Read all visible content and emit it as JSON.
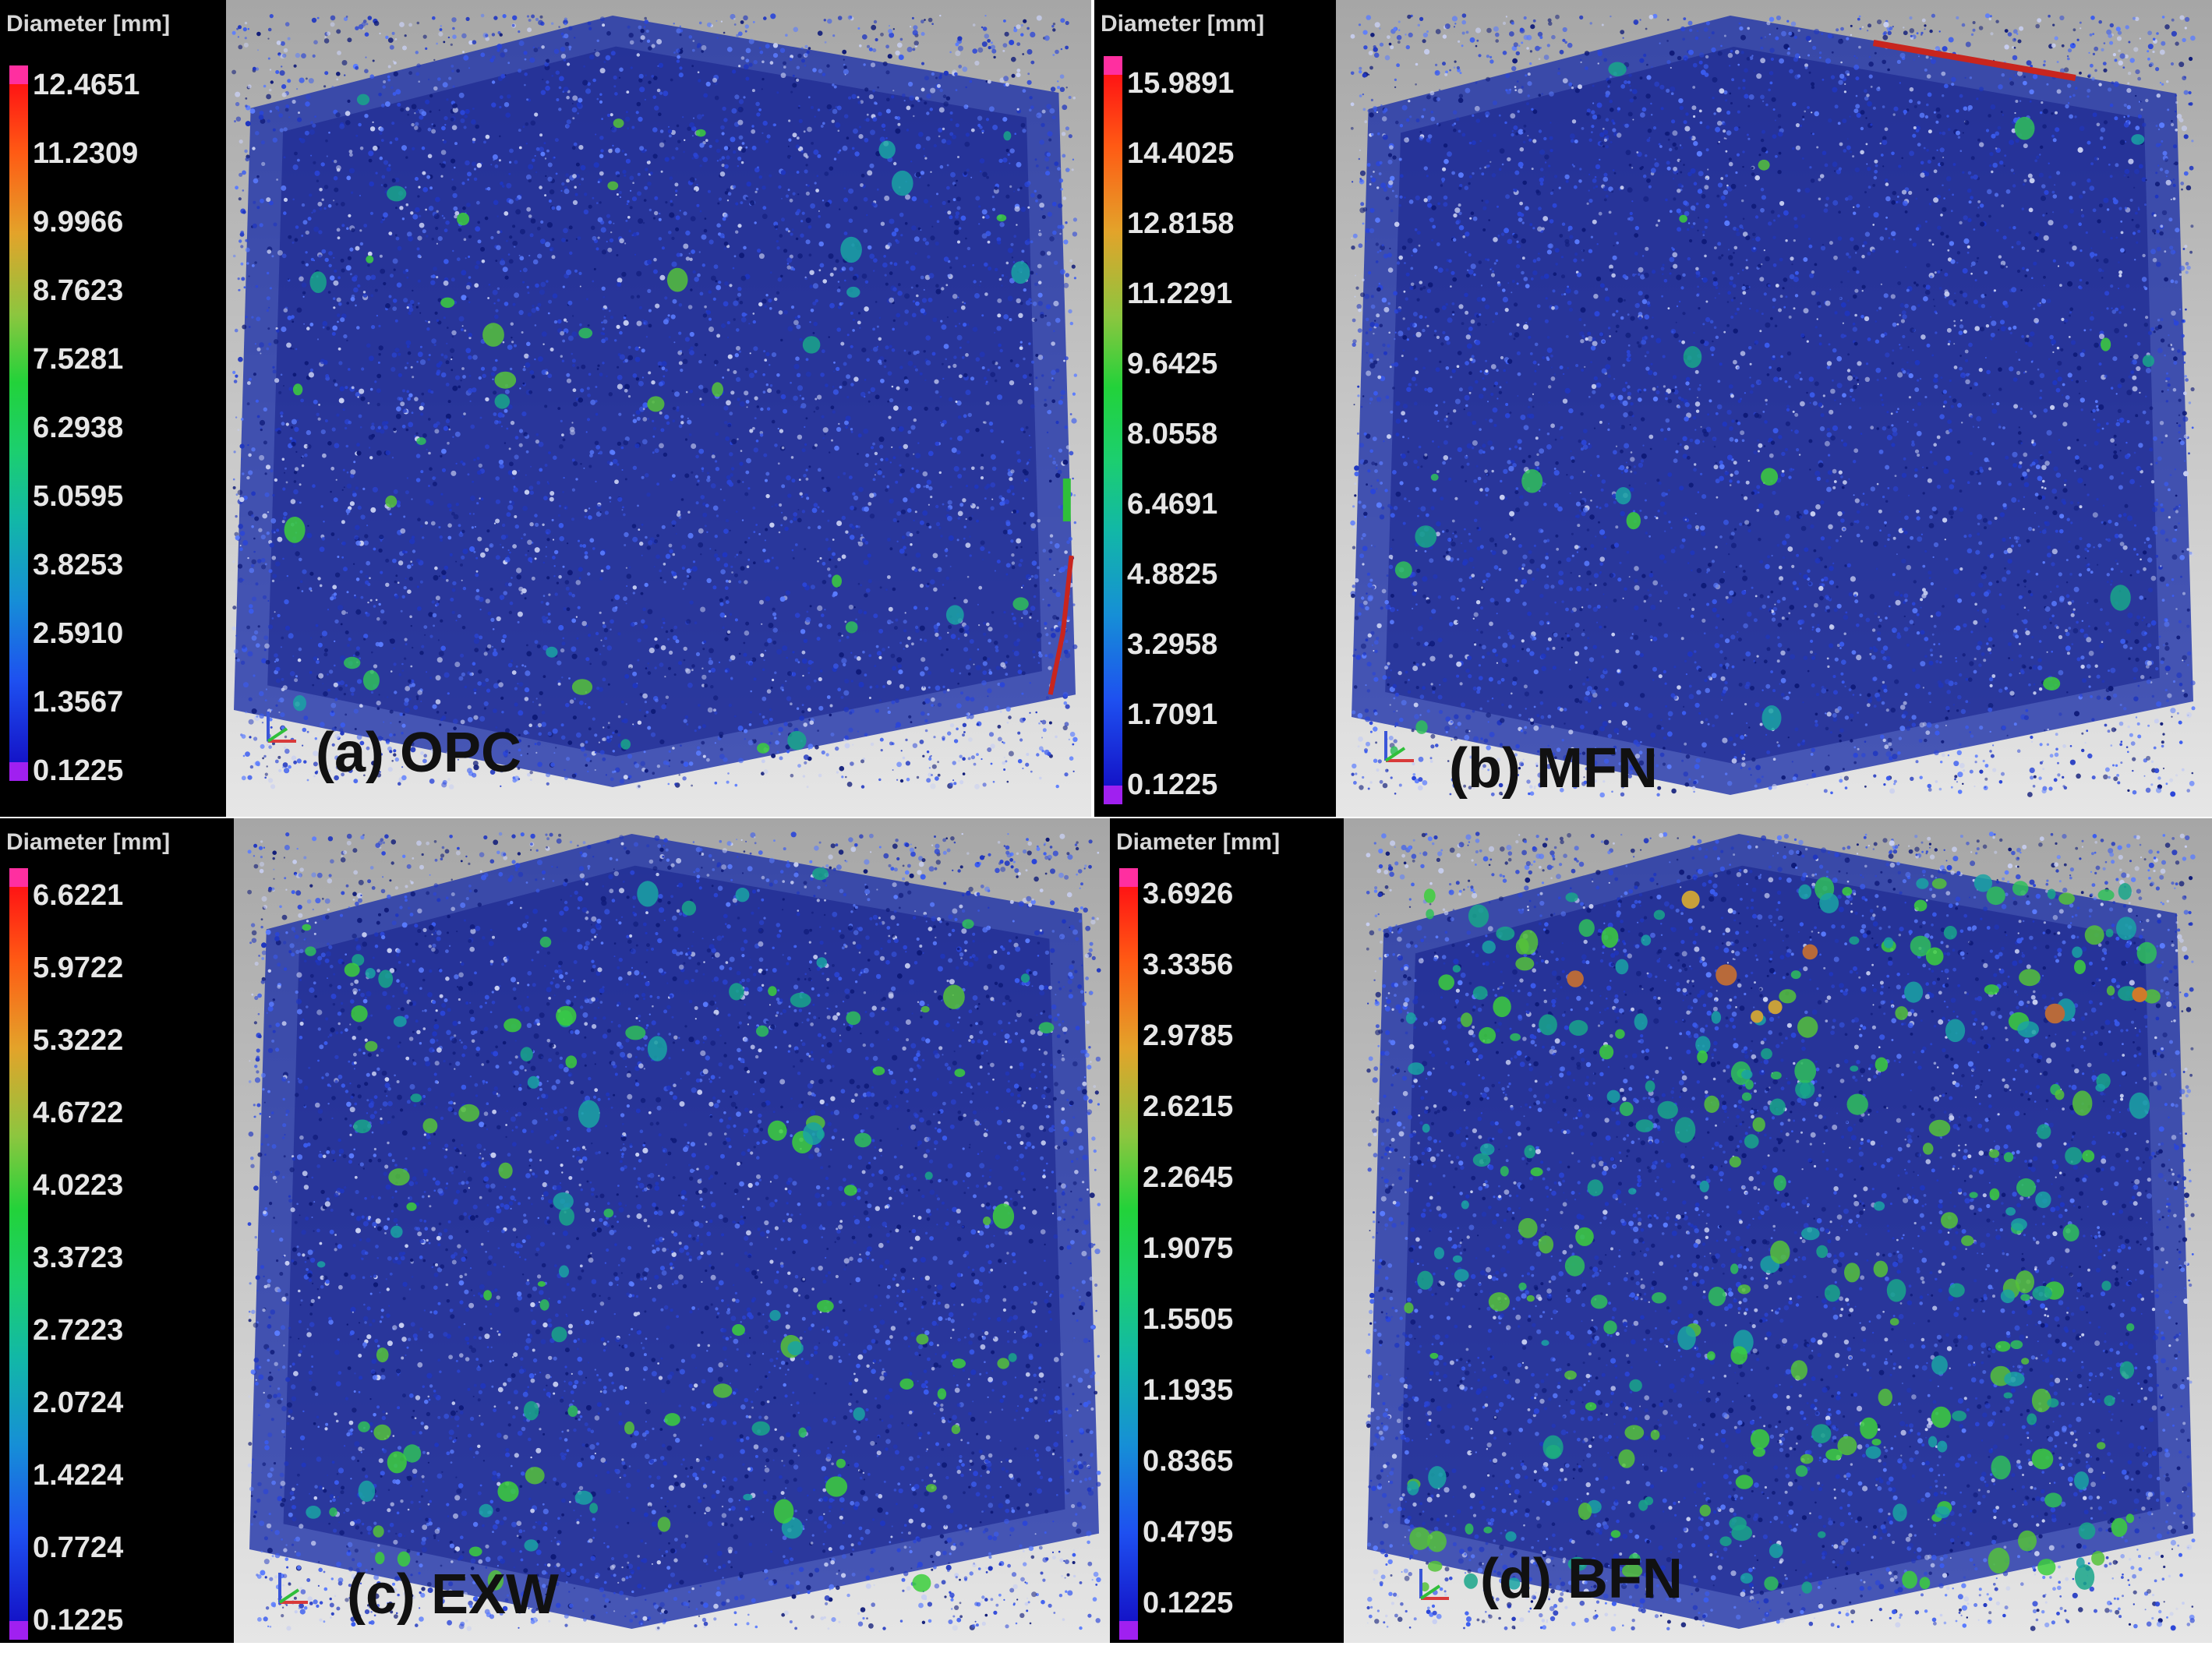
{
  "panels": [
    {
      "id": "a",
      "caption": "(a) OPC",
      "legend": {
        "title": "Diameter [mm]",
        "ticks": [
          "12.4651",
          "11.2309",
          "9.9966",
          "8.7623",
          "7.5281",
          "6.2938",
          "5.0595",
          "3.8253",
          "2.5910",
          "1.3567",
          "0.1225"
        ]
      }
    },
    {
      "id": "b",
      "caption": "(b) MFN",
      "legend": {
        "title": "Diameter [mm]",
        "ticks": [
          "15.9891",
          "14.4025",
          "12.8158",
          "11.2291",
          "9.6425",
          "8.0558",
          "6.4691",
          "4.8825",
          "3.2958",
          "1.7091",
          "0.1225"
        ]
      }
    },
    {
      "id": "c",
      "caption": "(c) EXW",
      "legend": {
        "title": "Diameter [mm]",
        "ticks": [
          "6.6221",
          "5.9722",
          "5.3222",
          "4.6722",
          "4.0223",
          "3.3723",
          "2.7223",
          "2.0724",
          "1.4224",
          "0.7724",
          "0.1225"
        ]
      }
    },
    {
      "id": "d",
      "caption": "(d) BFN",
      "legend": {
        "title": "Diameter [mm]",
        "ticks": [
          "3.6926",
          "3.3356",
          "2.9785",
          "2.6215",
          "2.2645",
          "1.9075",
          "1.5505",
          "1.1935",
          "0.8365",
          "0.4795",
          "0.1225"
        ]
      }
    }
  ],
  "colors": {
    "legend_bg": "#000000",
    "pore_blue": "#1a2ea8",
    "pore_green": "#2fbf5a",
    "pore_red": "#c8251e"
  }
}
